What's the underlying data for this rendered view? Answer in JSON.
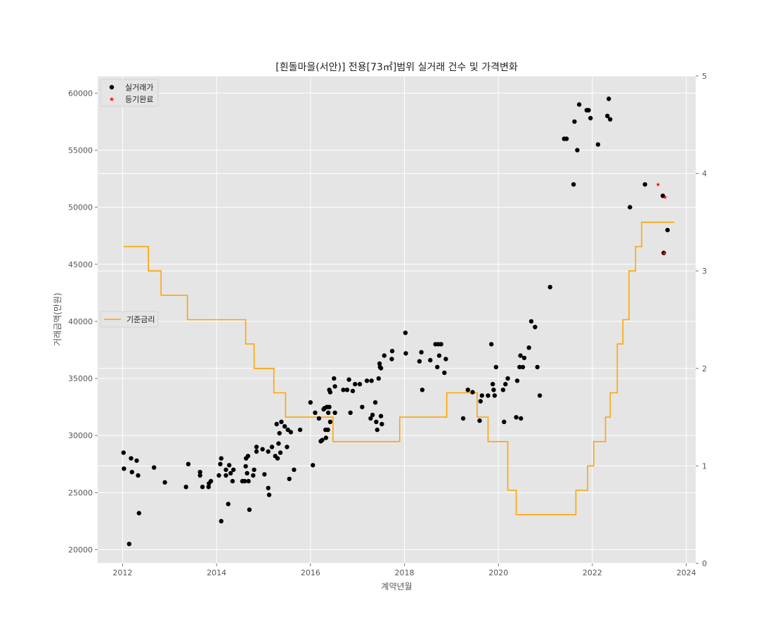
{
  "chart_data": {
    "type": "scatter",
    "title": "[흰돌마을(서안)] 전용[73㎡]범위 실거래 건수 및 가격변화",
    "xlabel": "계약년월",
    "ylabel": "거래금액(만원)",
    "xlim": [
      2011.47,
      2024.2
    ],
    "ylim": [
      18800,
      61500
    ],
    "y2lim": [
      0,
      5
    ],
    "x_ticks": [
      2012,
      2014,
      2016,
      2018,
      2020,
      2022,
      2024
    ],
    "y_ticks": [
      20000,
      25000,
      30000,
      35000,
      40000,
      45000,
      50000,
      55000,
      60000
    ],
    "y2_ticks": [
      0,
      1,
      2,
      3,
      4,
      5
    ],
    "grid": true,
    "legend_upper": {
      "placement": "top-left",
      "entries": [
        "실거래가",
        "등기완료"
      ]
    },
    "legend_lower": {
      "placement": "center-left",
      "entries": [
        "기준금리"
      ]
    },
    "colors": {
      "trades": "#000000",
      "registered": "#ff0000",
      "rate": "#ffa500",
      "background": "#e5e5e5",
      "grid": "#ffffff"
    },
    "series": [
      {
        "name": "실거래가",
        "kind": "scatter",
        "points": [
          [
            2012.02,
            28500
          ],
          [
            2012.03,
            27100
          ],
          [
            2012.14,
            20500
          ],
          [
            2012.18,
            28000
          ],
          [
            2012.2,
            26800
          ],
          [
            2012.3,
            27800
          ],
          [
            2012.33,
            26500
          ],
          [
            2012.35,
            23200
          ],
          [
            2012.67,
            27200
          ],
          [
            2012.9,
            25900
          ],
          [
            2013.35,
            25500
          ],
          [
            2013.4,
            27500
          ],
          [
            2013.65,
            26500
          ],
          [
            2013.65,
            26800
          ],
          [
            2013.7,
            25500
          ],
          [
            2013.83,
            25500
          ],
          [
            2013.84,
            25800
          ],
          [
            2013.88,
            26000
          ],
          [
            2014.05,
            26500
          ],
          [
            2014.08,
            27500
          ],
          [
            2014.1,
            28000
          ],
          [
            2014.1,
            22500
          ],
          [
            2014.2,
            27000
          ],
          [
            2014.2,
            26500
          ],
          [
            2014.25,
            24000
          ],
          [
            2014.27,
            27400
          ],
          [
            2014.3,
            26700
          ],
          [
            2014.34,
            26000
          ],
          [
            2014.36,
            27000
          ],
          [
            2014.55,
            26000
          ],
          [
            2014.6,
            26000
          ],
          [
            2014.62,
            27300
          ],
          [
            2014.63,
            28000
          ],
          [
            2014.65,
            26700
          ],
          [
            2014.67,
            28200
          ],
          [
            2014.68,
            26000
          ],
          [
            2014.7,
            23500
          ],
          [
            2014.78,
            26500
          ],
          [
            2014.8,
            27000
          ],
          [
            2014.85,
            28600
          ],
          [
            2014.85,
            29000
          ],
          [
            2014.98,
            28800
          ],
          [
            2015.02,
            26600
          ],
          [
            2015.1,
            28600
          ],
          [
            2015.1,
            25400
          ],
          [
            2015.12,
            24800
          ],
          [
            2015.18,
            29000
          ],
          [
            2015.25,
            28200
          ],
          [
            2015.28,
            31000
          ],
          [
            2015.3,
            28000
          ],
          [
            2015.32,
            29300
          ],
          [
            2015.34,
            30200
          ],
          [
            2015.36,
            28500
          ],
          [
            2015.38,
            31200
          ],
          [
            2015.45,
            30800
          ],
          [
            2015.5,
            29000
          ],
          [
            2015.52,
            30500
          ],
          [
            2015.55,
            26200
          ],
          [
            2015.58,
            30300
          ],
          [
            2015.65,
            27000
          ],
          [
            2015.78,
            30500
          ],
          [
            2016.0,
            32900
          ],
          [
            2016.05,
            27400
          ],
          [
            2016.1,
            32000
          ],
          [
            2016.18,
            31500
          ],
          [
            2016.22,
            29500
          ],
          [
            2016.25,
            29600
          ],
          [
            2016.28,
            32300
          ],
          [
            2016.3,
            32400
          ],
          [
            2016.32,
            30500
          ],
          [
            2016.33,
            29800
          ],
          [
            2016.35,
            32500
          ],
          [
            2016.37,
            30500
          ],
          [
            2016.38,
            32000
          ],
          [
            2016.4,
            32500
          ],
          [
            2016.4,
            34000
          ],
          [
            2016.42,
            31200
          ],
          [
            2016.42,
            33800
          ],
          [
            2016.5,
            35000
          ],
          [
            2016.52,
            34300
          ],
          [
            2016.52,
            32000
          ],
          [
            2016.7,
            34000
          ],
          [
            2016.78,
            34000
          ],
          [
            2016.82,
            34900
          ],
          [
            2016.85,
            32000
          ],
          [
            2016.9,
            33900
          ],
          [
            2016.95,
            34500
          ],
          [
            2017.05,
            34500
          ],
          [
            2017.1,
            32500
          ],
          [
            2017.2,
            34800
          ],
          [
            2017.3,
            34800
          ],
          [
            2017.28,
            31500
          ],
          [
            2017.32,
            31800
          ],
          [
            2017.38,
            32900
          ],
          [
            2017.4,
            31200
          ],
          [
            2017.42,
            30500
          ],
          [
            2017.45,
            35000
          ],
          [
            2017.47,
            36300
          ],
          [
            2017.48,
            36000
          ],
          [
            2017.5,
            35900
          ],
          [
            2017.5,
            31700
          ],
          [
            2017.52,
            31000
          ],
          [
            2017.57,
            37000
          ],
          [
            2017.73,
            36700
          ],
          [
            2017.74,
            37400
          ],
          [
            2018.02,
            39000
          ],
          [
            2018.03,
            37200
          ],
          [
            2018.32,
            36500
          ],
          [
            2018.36,
            37300
          ],
          [
            2018.38,
            34000
          ],
          [
            2018.55,
            36600
          ],
          [
            2018.66,
            38000
          ],
          [
            2018.7,
            36000
          ],
          [
            2018.72,
            38000
          ],
          [
            2018.74,
            37000
          ],
          [
            2018.78,
            38000
          ],
          [
            2018.85,
            35500
          ],
          [
            2018.88,
            36700
          ],
          [
            2019.25,
            31500
          ],
          [
            2019.35,
            34000
          ],
          [
            2019.45,
            33800
          ],
          [
            2019.6,
            31300
          ],
          [
            2019.62,
            33000
          ],
          [
            2019.65,
            33500
          ],
          [
            2019.78,
            33500
          ],
          [
            2019.85,
            38000
          ],
          [
            2019.88,
            34500
          ],
          [
            2019.9,
            34000
          ],
          [
            2019.92,
            33500
          ],
          [
            2019.95,
            36000
          ],
          [
            2020.1,
            34000
          ],
          [
            2020.12,
            31200
          ],
          [
            2020.15,
            34500
          ],
          [
            2020.2,
            35000
          ],
          [
            2020.38,
            31600
          ],
          [
            2020.4,
            34800
          ],
          [
            2020.45,
            36000
          ],
          [
            2020.47,
            37000
          ],
          [
            2020.48,
            31500
          ],
          [
            2020.52,
            36000
          ],
          [
            2020.55,
            36800
          ],
          [
            2020.65,
            37700
          ],
          [
            2020.7,
            40000
          ],
          [
            2020.78,
            39500
          ],
          [
            2020.83,
            36000
          ],
          [
            2020.88,
            33500
          ],
          [
            2021.1,
            43000
          ],
          [
            2021.4,
            56000
          ],
          [
            2021.45,
            56000
          ],
          [
            2021.6,
            52000
          ],
          [
            2021.62,
            57500
          ],
          [
            2021.68,
            55000
          ],
          [
            2021.72,
            59000
          ],
          [
            2021.88,
            58500
          ],
          [
            2021.92,
            58500
          ],
          [
            2021.96,
            57800
          ],
          [
            2022.12,
            55500
          ],
          [
            2022.32,
            58000
          ],
          [
            2022.35,
            59500
          ],
          [
            2022.38,
            57700
          ],
          [
            2022.8,
            50000
          ],
          [
            2023.12,
            52000
          ],
          [
            2023.5,
            51000
          ],
          [
            2023.52,
            46000
          ],
          [
            2023.6,
            48000
          ]
        ]
      },
      {
        "name": "등기완료",
        "kind": "scatter",
        "points": [
          [
            2023.4,
            52000
          ],
          [
            2023.55,
            50900
          ],
          [
            2023.53,
            46000
          ]
        ]
      },
      {
        "name": "기준금리",
        "kind": "step",
        "axis": "right",
        "points": [
          [
            2012.02,
            3.25
          ],
          [
            2012.55,
            3.0
          ],
          [
            2012.82,
            2.75
          ],
          [
            2013.38,
            2.5
          ],
          [
            2014.62,
            2.25
          ],
          [
            2014.8,
            2.0
          ],
          [
            2015.22,
            1.75
          ],
          [
            2015.47,
            1.5
          ],
          [
            2016.48,
            1.25
          ],
          [
            2017.9,
            1.5
          ],
          [
            2018.9,
            1.75
          ],
          [
            2019.55,
            1.5
          ],
          [
            2019.78,
            1.25
          ],
          [
            2020.2,
            0.75
          ],
          [
            2020.38,
            0.5
          ],
          [
            2021.65,
            0.75
          ],
          [
            2021.9,
            1.0
          ],
          [
            2022.03,
            1.25
          ],
          [
            2022.28,
            1.5
          ],
          [
            2022.38,
            1.75
          ],
          [
            2022.53,
            2.25
          ],
          [
            2022.65,
            2.5
          ],
          [
            2022.78,
            3.0
          ],
          [
            2022.92,
            3.25
          ],
          [
            2023.05,
            3.5
          ],
          [
            2023.75,
            3.5
          ]
        ]
      }
    ]
  }
}
